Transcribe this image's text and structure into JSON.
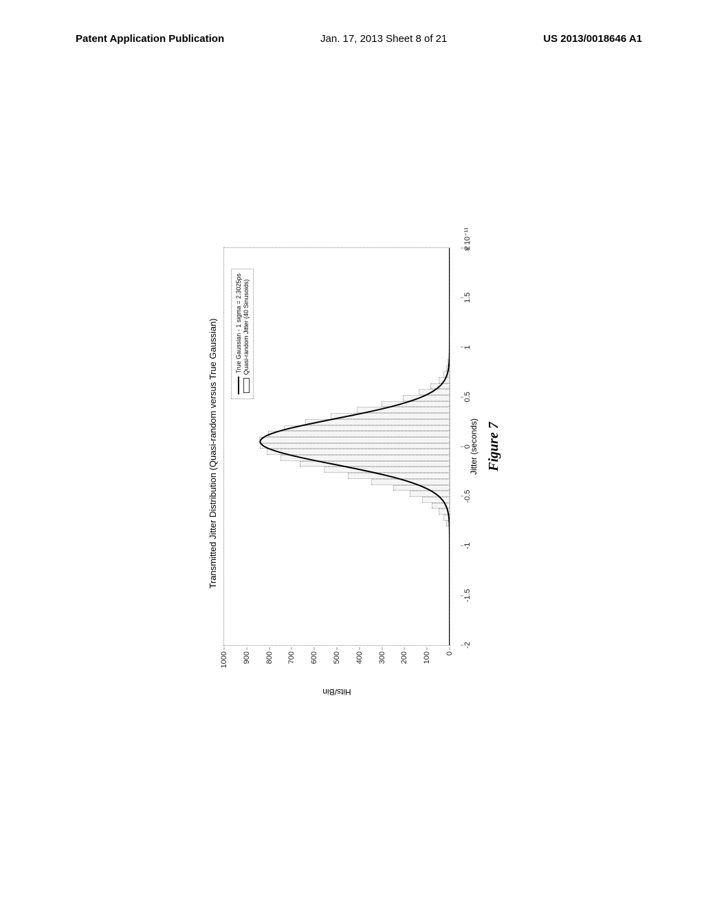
{
  "header": {
    "left": "Patent Application Publication",
    "center": "Jan. 17, 2013  Sheet 8 of 21",
    "right": "US 2013/0018646 A1"
  },
  "chart": {
    "type": "histogram-with-gaussian-overlay",
    "title": "Transmitted Jitter Distribution (Quasi-random versus True Gaussian)",
    "ylabel": "Hits/Bin",
    "xlabel": "Jitter (seconds)",
    "x_exponent": "× 10⁻¹¹",
    "xlim": [
      -2,
      2
    ],
    "ylim": [
      0,
      1000
    ],
    "xtick_values": [
      -2,
      -1.5,
      -1,
      -0.5,
      0,
      0.5,
      1,
      1.5,
      2
    ],
    "xtick_labels": [
      "-2",
      "-1.5",
      "-1",
      "-0.5",
      "0",
      "0.5",
      "1",
      "1.5",
      "2"
    ],
    "ytick_values": [
      0,
      100,
      200,
      300,
      400,
      500,
      600,
      700,
      800,
      900,
      1000
    ],
    "ytick_labels": [
      "0",
      "100",
      "200",
      "300",
      "400",
      "500",
      "600",
      "700",
      "800",
      "900",
      "1000"
    ],
    "legend": {
      "series1": "True Gaussian - 1 sigma = 2.3025ps",
      "series2": "Quasi-random Jitter (40 Sinusoids)"
    },
    "gaussian": {
      "peak": 840,
      "sigma_x": 0.23,
      "mean_x": 0.05,
      "line_color": "#000000",
      "line_width": 2
    },
    "histogram": {
      "bar_fill": "#f5f5f5",
      "bar_border": "#999999",
      "bar_border_style": "dotted",
      "points": [
        [
          -0.78,
          15
        ],
        [
          -0.72,
          28
        ],
        [
          -0.66,
          50
        ],
        [
          -0.6,
          80
        ],
        [
          -0.54,
          120
        ],
        [
          -0.48,
          175
        ],
        [
          -0.42,
          250
        ],
        [
          -0.36,
          345
        ],
        [
          -0.3,
          450
        ],
        [
          -0.24,
          555
        ],
        [
          -0.18,
          660
        ],
        [
          -0.12,
          745
        ],
        [
          -0.06,
          805
        ],
        [
          0.0,
          835
        ],
        [
          0.06,
          838
        ],
        [
          0.12,
          800
        ],
        [
          0.18,
          730
        ],
        [
          0.24,
          635
        ],
        [
          0.3,
          525
        ],
        [
          0.36,
          410
        ],
        [
          0.42,
          300
        ],
        [
          0.48,
          205
        ],
        [
          0.54,
          135
        ],
        [
          0.6,
          85
        ],
        [
          0.66,
          50
        ],
        [
          0.72,
          28
        ],
        [
          0.78,
          15
        ],
        [
          0.84,
          8
        ]
      ],
      "bar_width_x": 0.06
    },
    "background_color": "#ffffff",
    "border_style": "dotted",
    "border_color": "#888888"
  },
  "figure_label": "Figure 7"
}
